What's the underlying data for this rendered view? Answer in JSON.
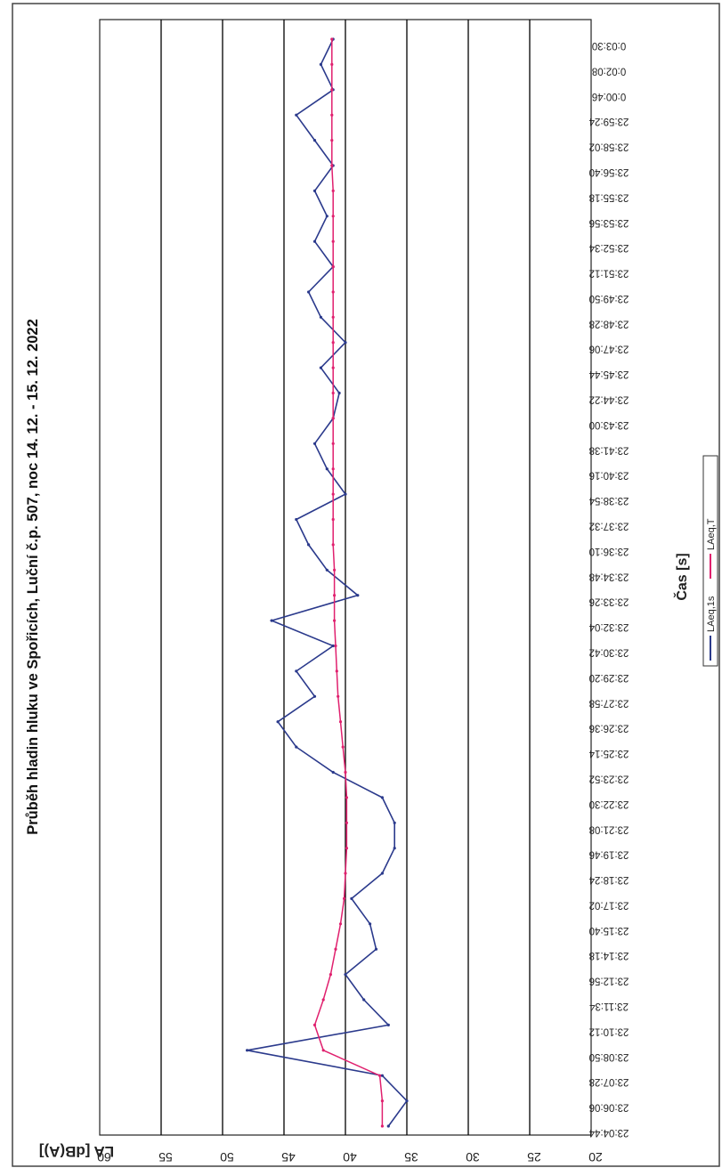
{
  "chart_data": {
    "type": "line",
    "title": "Průběh hladin hluku ve Spořicích, Luční č.p. 507, noc 14. 12. - 15. 12. 2022",
    "xlabel": "Čas [s]",
    "ylabel": "LA [dB(A)]",
    "ylim": [
      20,
      60
    ],
    "yticks": [
      "60",
      "55",
      "50",
      "45",
      "40",
      "35",
      "30",
      "25",
      "20"
    ],
    "grid": "major y gridlines",
    "legend_position": "bottom",
    "categories": [
      "23:04:44",
      "23:06:06",
      "23:07:28",
      "23:08:50",
      "23:10:12",
      "23:11:34",
      "23:12:56",
      "23:14:18",
      "23:15:40",
      "23:17:02",
      "23:18:24",
      "23:19:46",
      "23:21:08",
      "23:22:30",
      "23:23:52",
      "23:25:14",
      "23:26:36",
      "23:27:58",
      "23:29:20",
      "23:30:42",
      "23:32:04",
      "23:33:26",
      "23:34:48",
      "23:36:10",
      "23:37:32",
      "23:38:54",
      "23:40:16",
      "23:41:38",
      "23:43:00",
      "23:44:22",
      "23:45:44",
      "23:47:06",
      "23:48:28",
      "23:49:50",
      "23:51:12",
      "23:52:34",
      "23:53:56",
      "23:55:18",
      "23:56:40",
      "23:58:02",
      "23:59:24",
      "0:00:46",
      "0:02:08",
      "0:03:30"
    ],
    "series": [
      {
        "name": "LAeq,1s",
        "color": "#2b3a8c",
        "values": [
          36.5,
          35.0,
          37.0,
          48.0,
          36.5,
          38.5,
          40.0,
          37.5,
          38.0,
          39.5,
          37.0,
          36.0,
          36.0,
          37.0,
          41.0,
          44.0,
          45.5,
          42.5,
          44.0,
          41.0,
          46.0,
          39.0,
          41.5,
          43.0,
          44.0,
          40.0,
          41.5,
          42.5,
          41.0,
          40.5,
          42.0,
          40.0,
          42.0,
          43.0,
          41.0,
          42.5,
          41.5,
          42.5,
          41.0,
          42.5,
          44.0,
          41.0,
          42.0,
          41.0
        ]
      },
      {
        "name": "LAeq,T",
        "color": "#e0206e",
        "values": [
          37.0,
          37.0,
          37.2,
          41.8,
          42.5,
          41.8,
          41.2,
          40.8,
          40.4,
          40.1,
          40.0,
          39.9,
          39.9,
          39.9,
          40.0,
          40.2,
          40.4,
          40.6,
          40.7,
          40.8,
          40.9,
          40.9,
          40.9,
          41.0,
          41.0,
          41.0,
          41.0,
          41.0,
          41.0,
          41.0,
          41.0,
          41.0,
          41.0,
          41.0,
          41.0,
          41.0,
          41.0,
          41.0,
          41.1,
          41.1,
          41.1,
          41.1,
          41.1,
          41.1
        ]
      }
    ]
  }
}
